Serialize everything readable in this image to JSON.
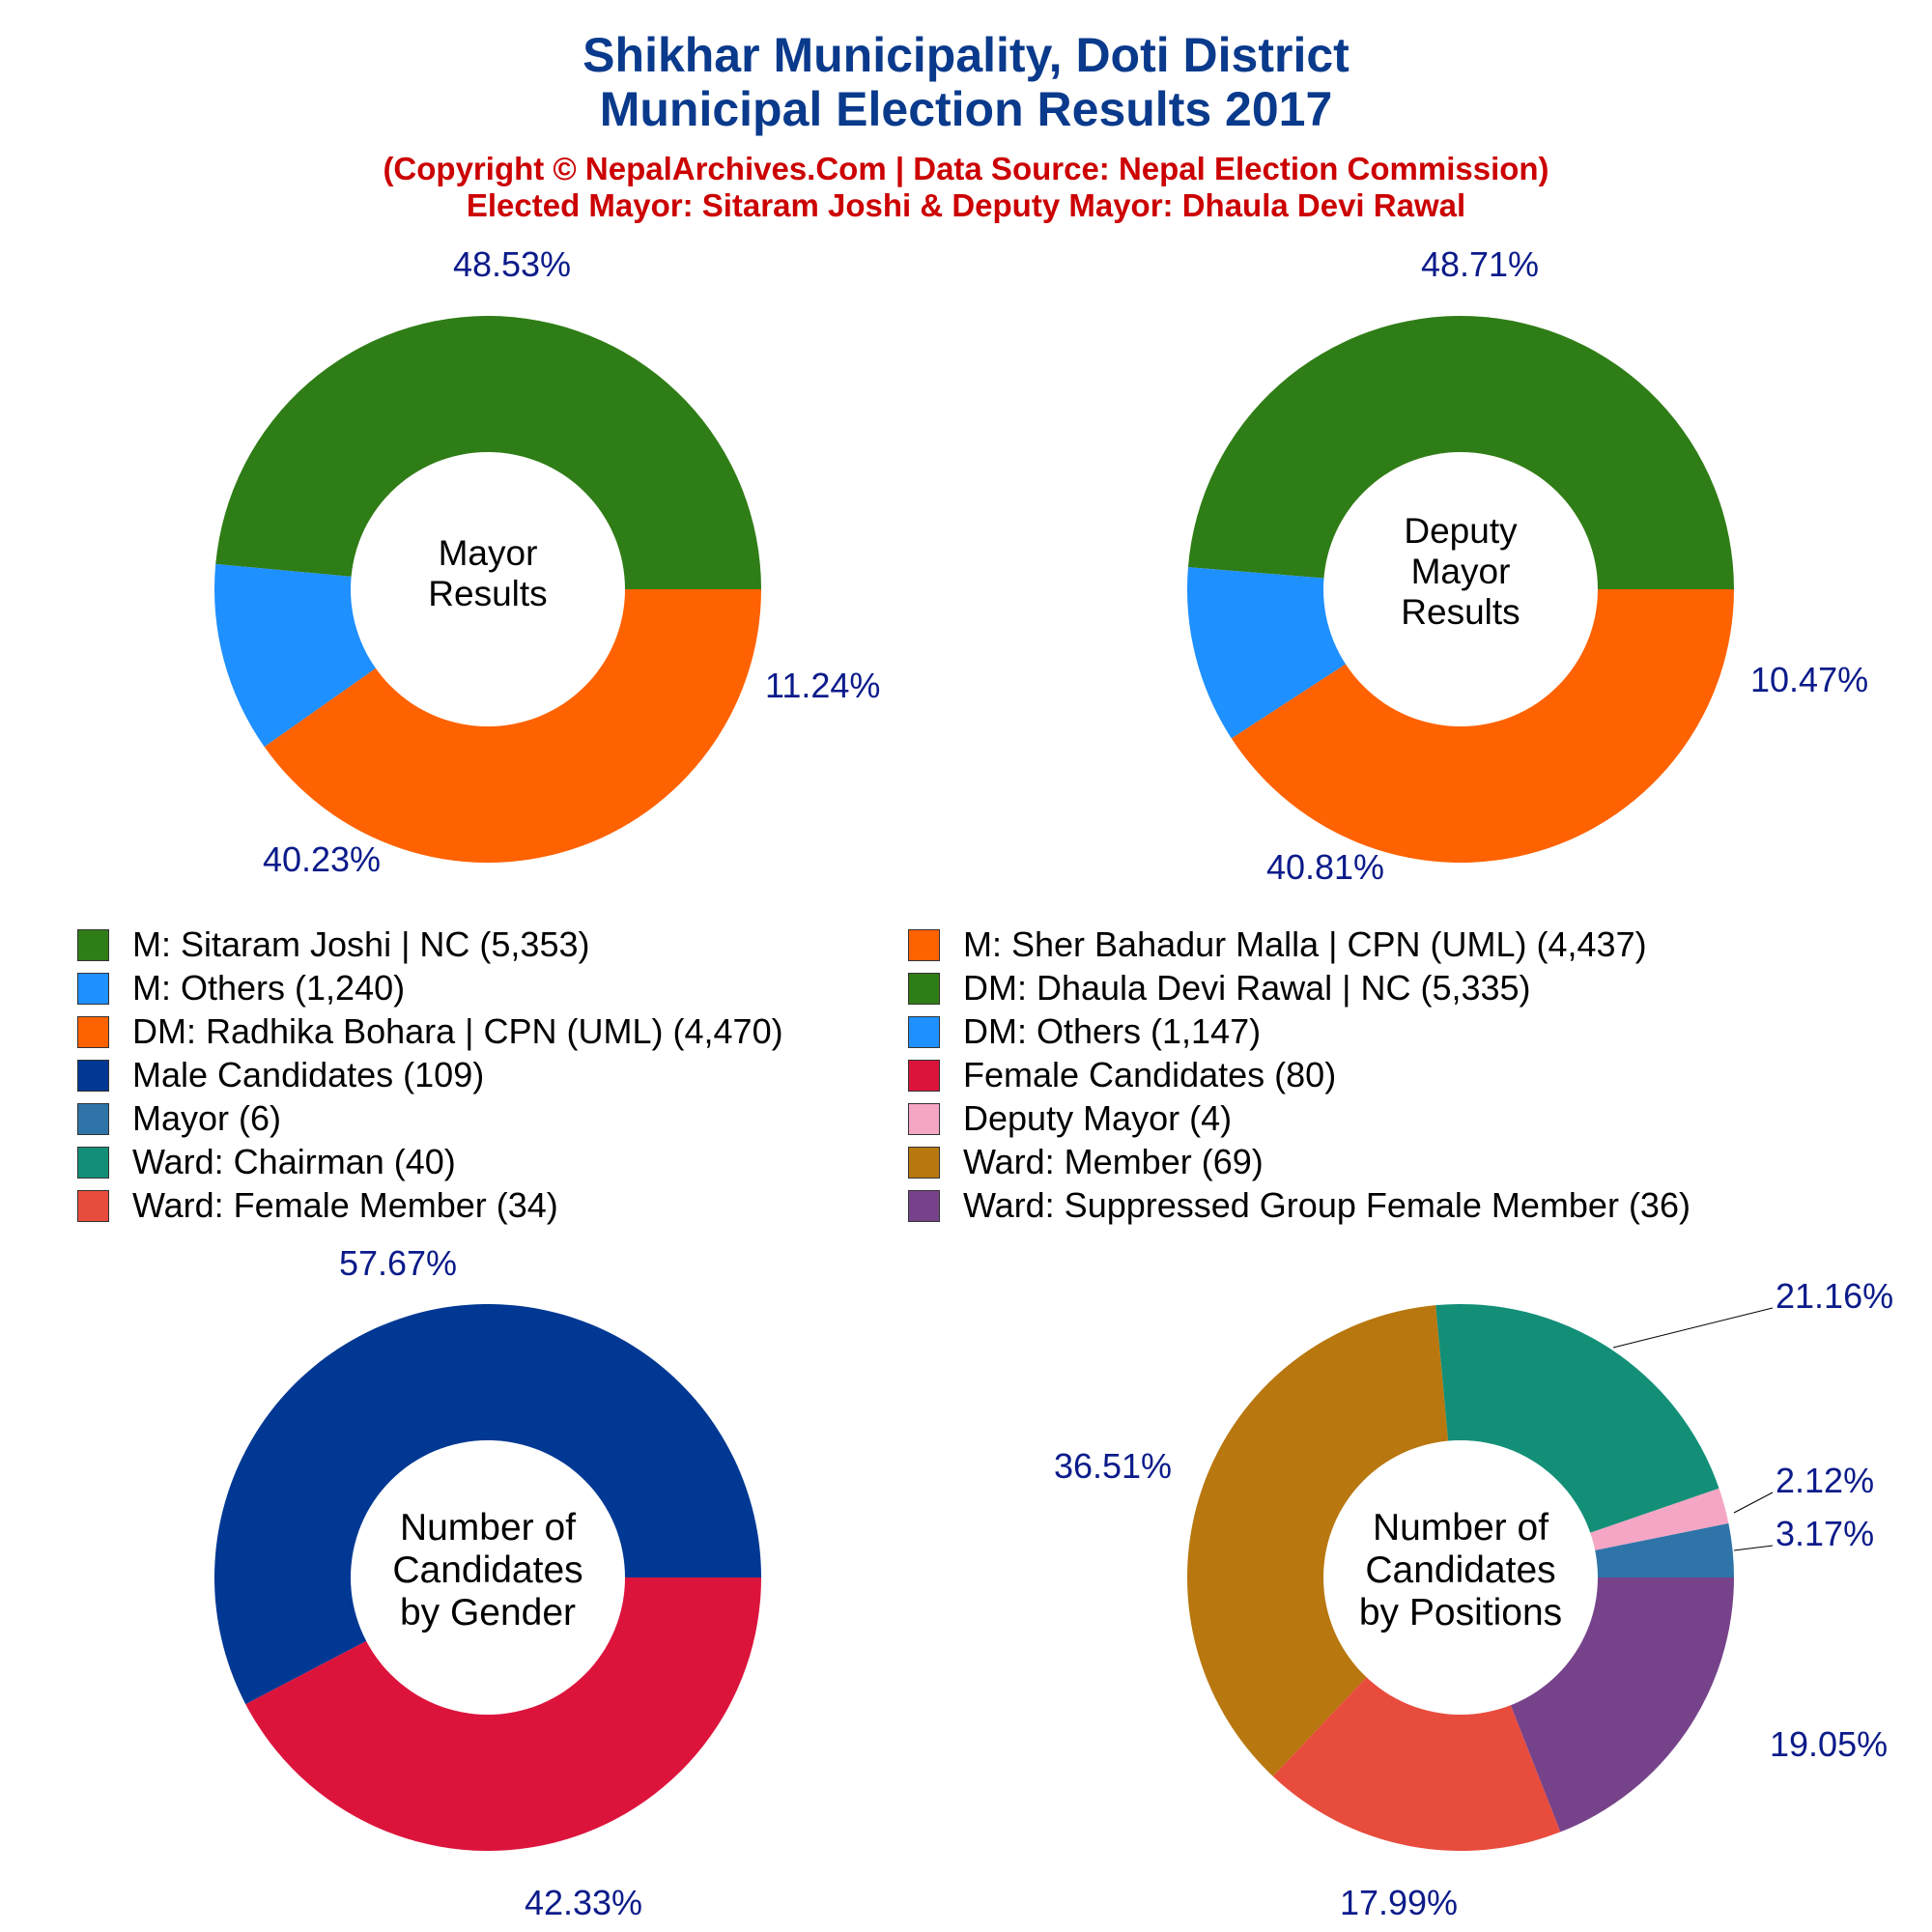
{
  "header": {
    "title_line1": "Shikhar Municipality, Doti District",
    "title_line2": "Municipal Election Results 2017",
    "subtitle_line1": "(Copyright © NepalArchives.Com | Data Source: Nepal Election Commission)",
    "subtitle_line2": "Elected Mayor: Sitaram Joshi & Deputy Mayor: Dhaula Devi Rawal"
  },
  "chart_data": [
    {
      "type": "pie",
      "center_label": [
        "Mayor",
        "Results"
      ],
      "slices": [
        {
          "label": "M: Sitaram Joshi | NC",
          "value": 5353,
          "percent_label": "48.53%",
          "color": "#2f7d16"
        },
        {
          "label": "M: Others",
          "value": 1240,
          "percent_label": "11.24%",
          "color": "#1e90ff"
        },
        {
          "label": "M: Sher Bahadur Malla | CPN (UML)",
          "value": 4437,
          "percent_label": "40.23%",
          "color": "#ff6200"
        }
      ]
    },
    {
      "type": "pie",
      "center_label": [
        "Deputy",
        "Mayor",
        "Results"
      ],
      "slices": [
        {
          "label": "DM: Dhaula Devi Rawal | NC",
          "value": 5335,
          "percent_label": "48.71%",
          "color": "#2f7d16"
        },
        {
          "label": "DM: Others",
          "value": 1147,
          "percent_label": "10.47%",
          "color": "#1e90ff"
        },
        {
          "label": "DM: Radhika Bohara | CPN (UML)",
          "value": 4470,
          "percent_label": "40.81%",
          "color": "#ff6200"
        }
      ]
    },
    {
      "type": "pie",
      "center_label": [
        "Number of",
        "Candidates",
        "by Gender"
      ],
      "slices": [
        {
          "label": "Male Candidates",
          "value": 109,
          "percent_label": "57.67%",
          "color": "#003893"
        },
        {
          "label": "Female Candidates",
          "value": 80,
          "percent_label": "42.33%",
          "color": "#dc143c"
        }
      ]
    },
    {
      "type": "pie",
      "center_label": [
        "Number of",
        "Candidates",
        "by Positions"
      ],
      "slices": [
        {
          "label": "Mayor",
          "value": 6,
          "percent_label": "3.17%",
          "color": "#2e74a8"
        },
        {
          "label": "Deputy Mayor",
          "value": 4,
          "percent_label": "2.12%",
          "color": "#f4a6c4"
        },
        {
          "label": "Ward: Chairman",
          "value": 40,
          "percent_label": "21.16%",
          "color": "#138f78"
        },
        {
          "label": "Ward: Member",
          "value": 69,
          "percent_label": "36.51%",
          "color": "#b8770f"
        },
        {
          "label": "Ward: Female Member",
          "value": 34,
          "percent_label": "17.99%",
          "color": "#e84c3d"
        },
        {
          "label": "Ward: Suppressed Group Female Member",
          "value": 36,
          "percent_label": "19.05%",
          "color": "#76438a"
        }
      ]
    }
  ],
  "legend": {
    "items": [
      {
        "text": "M: Sitaram Joshi | NC (5,353)",
        "color": "#2f7d16"
      },
      {
        "text": "M: Sher Bahadur Malla | CPN (UML) (4,437)",
        "color": "#ff6200"
      },
      {
        "text": "M: Others (1,240)",
        "color": "#1e90ff"
      },
      {
        "text": "DM: Dhaula Devi Rawal | NC (5,335)",
        "color": "#2f7d16"
      },
      {
        "text": "DM: Radhika Bohara | CPN (UML) (4,470)",
        "color": "#ff6200"
      },
      {
        "text": "DM: Others (1,147)",
        "color": "#1e90ff"
      },
      {
        "text": "Male Candidates (109)",
        "color": "#003893"
      },
      {
        "text": "Female Candidates (80)",
        "color": "#dc143c"
      },
      {
        "text": "Mayor (6)",
        "color": "#2e74a8"
      },
      {
        "text": "Deputy Mayor (4)",
        "color": "#f4a6c4"
      },
      {
        "text": "Ward: Chairman (40)",
        "color": "#138f78"
      },
      {
        "text": "Ward: Member (69)",
        "color": "#b8770f"
      },
      {
        "text": "Ward: Female Member (34)",
        "color": "#e84c3d"
      },
      {
        "text": "Ward: Suppressed Group Female Member (36)",
        "color": "#76438a"
      }
    ]
  }
}
